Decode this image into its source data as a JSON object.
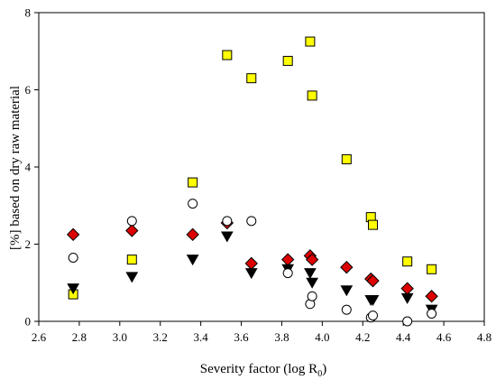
{
  "chart_data": {
    "type": "scatter",
    "xlabel": "Severity factor (log R",
    "xlabel_subscript": "0",
    "xlabel_suffix": ")",
    "ylabel": "[%] based on dry raw material",
    "xlim": [
      2.6,
      4.8
    ],
    "ylim": [
      0,
      8
    ],
    "xticks": [
      "2.6",
      "2.8",
      "3.0",
      "3.2",
      "3.4",
      "3.6",
      "3.8",
      "4.0",
      "4.2",
      "4.4",
      "4.6",
      "4.8"
    ],
    "yticks": [
      "0",
      "2",
      "4",
      "6",
      "8"
    ],
    "grid": false,
    "series": [
      {
        "marker": "square",
        "color": "#ffff00",
        "points": [
          [
            2.77,
            0.7
          ],
          [
            3.06,
            1.6
          ],
          [
            3.36,
            3.6
          ],
          [
            3.53,
            6.9
          ],
          [
            3.65,
            6.3
          ],
          [
            3.83,
            6.75
          ],
          [
            3.94,
            7.25
          ],
          [
            3.95,
            5.85
          ],
          [
            4.12,
            4.2
          ],
          [
            4.24,
            2.7
          ],
          [
            4.25,
            2.5
          ],
          [
            4.42,
            1.55
          ],
          [
            4.54,
            1.35
          ]
        ]
      },
      {
        "marker": "diamond",
        "color": "#dd0000",
        "points": [
          [
            2.77,
            2.25
          ],
          [
            3.06,
            2.35
          ],
          [
            3.36,
            2.25
          ],
          [
            3.53,
            2.55
          ],
          [
            3.65,
            1.5
          ],
          [
            3.83,
            1.6
          ],
          [
            3.94,
            1.7
          ],
          [
            3.95,
            1.6
          ],
          [
            4.12,
            1.4
          ],
          [
            4.24,
            1.1
          ],
          [
            4.25,
            1.05
          ],
          [
            4.42,
            0.85
          ],
          [
            4.54,
            0.65
          ]
        ]
      },
      {
        "marker": "triangle-down",
        "color": "#000000",
        "points": [
          [
            2.77,
            0.85
          ],
          [
            3.06,
            1.15
          ],
          [
            3.36,
            1.6
          ],
          [
            3.53,
            2.2
          ],
          [
            3.65,
            1.25
          ],
          [
            3.83,
            1.35
          ],
          [
            3.94,
            1.25
          ],
          [
            3.95,
            1.0
          ],
          [
            4.12,
            0.8
          ],
          [
            4.24,
            0.55
          ],
          [
            4.25,
            0.55
          ],
          [
            4.42,
            0.6
          ],
          [
            4.54,
            0.3
          ]
        ]
      },
      {
        "marker": "circle-open",
        "color": "#ffffff",
        "points": [
          [
            2.77,
            1.65
          ],
          [
            3.06,
            2.6
          ],
          [
            3.36,
            3.05
          ],
          [
            3.53,
            2.6
          ],
          [
            3.65,
            2.6
          ],
          [
            3.83,
            1.25
          ],
          [
            3.94,
            0.45
          ],
          [
            3.95,
            0.65
          ],
          [
            4.12,
            0.3
          ],
          [
            4.24,
            0.1
          ],
          [
            4.25,
            0.15
          ],
          [
            4.42,
            0.0
          ],
          [
            4.54,
            0.2
          ]
        ]
      }
    ]
  }
}
